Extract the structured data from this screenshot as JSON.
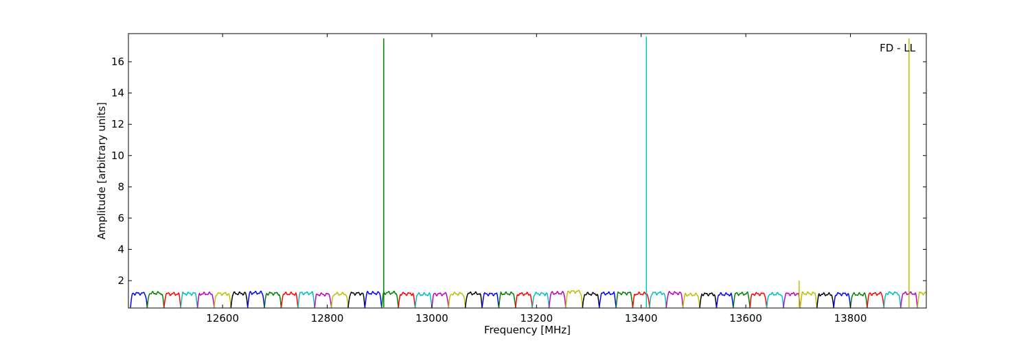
{
  "chart_data": {
    "type": "line",
    "title": "",
    "annotation": "FD - LL",
    "xlabel": "Frequency [MHz]",
    "ylabel": "Amplitude [arbitrary units]",
    "xlim": [
      12420,
      13945
    ],
    "ylim": [
      0.25,
      17.8
    ],
    "x_ticks": [
      12600,
      12800,
      13000,
      13200,
      13400,
      13600,
      13800
    ],
    "y_ticks": [
      2,
      4,
      6,
      8,
      10,
      12,
      14,
      16
    ],
    "grid": false,
    "legend": "none",
    "band_width_mhz": 32,
    "band_start_mhz": 12424,
    "band_colors": [
      "#0000ff",
      "#008000",
      "#ff0000",
      "#00bfbf",
      "#bf00bf",
      "#bfbf00",
      "#000000"
    ],
    "band_levels": [
      1.18,
      1.2,
      1.15,
      1.17,
      1.16,
      1.16,
      1.18,
      1.22,
      1.18,
      1.16,
      1.2,
      1.12,
      1.15,
      1.18,
      1.2,
      1.22,
      1.16,
      1.12,
      1.14,
      1.16,
      1.18,
      1.14,
      1.17,
      1.15,
      1.16,
      1.2,
      1.3,
      1.15,
      1.18,
      1.2,
      1.16,
      1.2,
      1.2,
      1.1,
      1.14,
      1.12,
      1.16,
      1.15,
      1.14,
      1.15,
      1.18,
      1.12,
      1.15,
      1.12,
      1.16,
      1.2,
      1.18,
      1.2
    ],
    "spikes": [
      {
        "x": 12908,
        "y": 17.5,
        "color": "#008000"
      },
      {
        "x": 13410,
        "y": 17.6,
        "color": "#00bfbf"
      },
      {
        "x": 13702,
        "y": 2.0,
        "color": "#bfbf00"
      },
      {
        "x": 13912,
        "y": 17.5,
        "color": "#bfbf00"
      }
    ]
  }
}
